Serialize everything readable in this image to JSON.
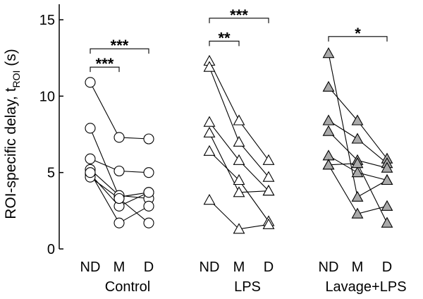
{
  "chart_data": {
    "type": "scatter",
    "subtype": "paired-dot-plot",
    "ylabel_main": "ROI-specific delay, t",
    "ylabel_sub": "ROI",
    "ylabel_unit": " (s)",
    "ylim": [
      0,
      15
    ],
    "yticks": [
      "0",
      "5",
      "10",
      "15"
    ],
    "yticks_values": [
      0,
      5,
      10,
      15
    ],
    "grid": false,
    "legend": "none",
    "groups": [
      {
        "name": "Control",
        "categories": [
          "ND",
          "M",
          "D"
        ],
        "marker": "circle",
        "marker_fill": "#ffffff",
        "subjects": [
          [
            10.9,
            7.3,
            7.2
          ],
          [
            7.9,
            3.4,
            3.7
          ],
          [
            5.9,
            5.1,
            5.0
          ],
          [
            5.2,
            3.5,
            3.3
          ],
          [
            4.9,
            2.8,
            3.7
          ],
          [
            4.7,
            3.3,
            1.7
          ],
          [
            5.0,
            1.7,
            2.8
          ]
        ],
        "significance": [
          {
            "from": "ND",
            "to": "M",
            "label": "***",
            "y": 11.9
          },
          {
            "from": "ND",
            "to": "D",
            "label": "***",
            "y": 13.1
          }
        ]
      },
      {
        "name": "LPS",
        "categories": [
          "ND",
          "M",
          "D"
        ],
        "marker": "triangle",
        "marker_fill": "#ffffff",
        "subjects": [
          [
            12.3,
            8.4,
            5.8
          ],
          [
            11.9,
            7.0,
            4.7
          ],
          [
            8.3,
            5.8,
            3.8
          ],
          [
            7.6,
            3.7,
            3.8
          ],
          [
            6.4,
            4.5,
            1.8
          ],
          [
            3.2,
            1.3,
            1.6
          ]
        ],
        "significance": [
          {
            "from": "ND",
            "to": "M",
            "label": "**",
            "y": 13.6
          },
          {
            "from": "ND",
            "to": "D",
            "label": "***",
            "y": 15.1
          }
        ]
      },
      {
        "name": "Lavage+LPS",
        "categories": [
          "ND",
          "M",
          "D"
        ],
        "marker": "triangle",
        "marker_fill": "#aaaaaa",
        "subjects": [
          [
            12.8,
            3.4,
            4.5
          ],
          [
            10.6,
            8.4,
            5.9
          ],
          [
            8.4,
            7.2,
            5.6
          ],
          [
            7.7,
            5.8,
            5.3
          ],
          [
            6.1,
            5.0,
            4.5
          ],
          [
            5.5,
            2.3,
            2.8
          ],
          [
            5.5,
            5.6,
            1.7
          ]
        ],
        "significance": [
          {
            "from": "ND",
            "to": "D",
            "label": "*",
            "y": 13.9
          }
        ]
      }
    ]
  }
}
